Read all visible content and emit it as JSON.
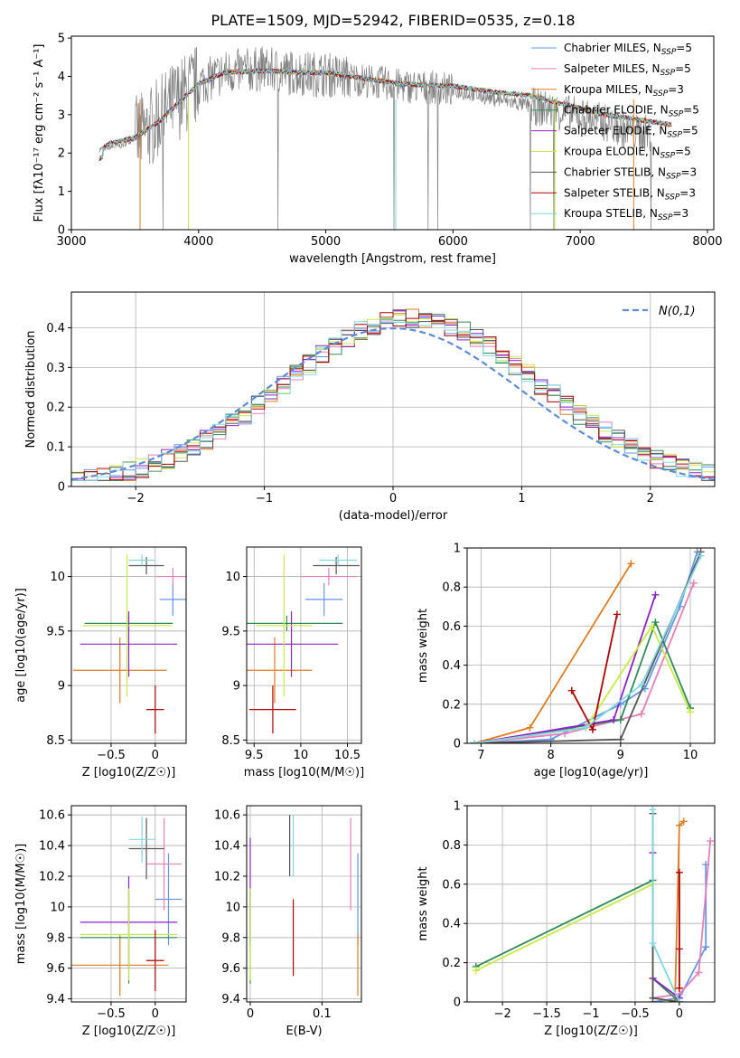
{
  "figure_title": "PLATE=1509, MJD=52942, FIBERID=0535, z=0.18",
  "colors": {
    "Chabrier MILES": "#6495ed",
    "Salpeter MILES": "#e87fb8",
    "Kroupa MILES": "#e07b20",
    "Chabrier ELODIE": "#2e8b57",
    "Salpeter ELODIE": "#8b22c8",
    "Kroupa ELODIE": "#c7ea46",
    "Chabrier STELIB": "#555555",
    "Salpeter STELIB": "#b00000",
    "Kroupa STELIB": "#80d8e0"
  },
  "chart_data": [
    {
      "id": "spectrum",
      "type": "line",
      "xlabel": "wavelength [Angstrom, rest frame]",
      "ylabel": "Flux [fλ10⁻¹⁷ erg cm⁻² s⁻¹ A⁻¹]",
      "xlim": [
        3000,
        8050
      ],
      "ylim": [
        0,
        5.05
      ],
      "xticks": [
        3000,
        4000,
        5000,
        6000,
        7000,
        8000
      ],
      "yticks": [
        0,
        1,
        2,
        3,
        4,
        5
      ],
      "legend_position": "top-right",
      "legend": [
        "Chabrier MILES, N_SSP=5",
        "Salpeter MILES, N_SSP=5",
        "Kroupa MILES, N_SSP=3",
        "Chabrier ELODIE, N_SSP=5",
        "Salpeter ELODIE, N_SSP=5",
        "Kroupa ELODIE, N_SSP=5",
        "Chabrier STELIB, N_SSP=3",
        "Salpeter STELIB, N_SSP=3",
        "Kroupa STELIB, N_SSP=3"
      ],
      "observed_x": [
        3220,
        3400,
        3600,
        3800,
        4000,
        4200,
        4500,
        4700,
        5000,
        5300,
        5600,
        5900,
        6200,
        6500,
        6800,
        7100,
        7400,
        7550
      ],
      "observed_y": [
        2.1,
        2.2,
        2.6,
        3.3,
        3.8,
        4.1,
        4.2,
        4.1,
        4.05,
        3.9,
        3.75,
        3.7,
        3.5,
        3.3,
        3.1,
        2.9,
        2.55,
        2.5
      ],
      "model_x": [
        3220,
        3300,
        3500,
        3700,
        3900,
        4000,
        4200,
        4500,
        4800,
        5000,
        5300,
        5600,
        6000,
        6300,
        6600,
        6900,
        7200,
        7500,
        7700
      ],
      "model_y": [
        2.05,
        2.25,
        2.4,
        2.85,
        3.5,
        3.8,
        4.1,
        4.15,
        4.1,
        4.1,
        3.95,
        3.8,
        3.75,
        3.6,
        3.5,
        3.25,
        3.0,
        2.85,
        2.75
      ]
    },
    {
      "id": "residual_histogram",
      "type": "line",
      "xlabel": "(data-model)/error",
      "ylabel": "Normed distribution",
      "xlim": [
        -2.5,
        2.5
      ],
      "ylim": [
        0,
        0.49
      ],
      "xticks": [
        -2,
        -1,
        0,
        1,
        2
      ],
      "yticks": [
        0.0,
        0.1,
        0.2,
        0.3,
        0.4
      ],
      "legend_position": "top-right",
      "legend": [
        "N(0,1)"
      ],
      "gaussian": {
        "mean": 0,
        "sigma": 1
      },
      "bin_width": 0.1,
      "grid": true
    },
    {
      "id": "age_vs_Z",
      "type": "scatter",
      "xlabel": "Z [log10(Z/Z☉)]",
      "ylabel": "age  [log10(age/yr)]",
      "xlim": [
        -0.95,
        0.35
      ],
      "ylim": [
        8.47,
        10.27
      ],
      "xticks": [
        -0.5,
        0.0
      ],
      "yticks": [
        8.5,
        9.0,
        9.5,
        10.0
      ],
      "points": [
        {
          "model": "Chabrier MILES",
          "x": 0.2,
          "xerr": 0.15,
          "y": 9.79,
          "yerr": 0.15
        },
        {
          "model": "Salpeter MILES",
          "x": 0.2,
          "xerr": 0.18,
          "y": 10.0,
          "yerr": 0.08
        },
        {
          "model": "Kroupa MILES",
          "x": -0.4,
          "xerr": 0.53,
          "y": 9.14,
          "yerr": 0.3
        },
        {
          "model": "Chabrier ELODIE",
          "x": -0.3,
          "xerr": 0.5,
          "y": 9.57,
          "yerr": 0.07
        },
        {
          "model": "Salpeter ELODIE",
          "x": -0.3,
          "xerr": 0.55,
          "y": 9.38,
          "yerr": 0.3
        },
        {
          "model": "Kroupa ELODIE",
          "x": -0.32,
          "xerr": 0.5,
          "y": 9.55,
          "yerr": 0.65
        },
        {
          "model": "Chabrier STELIB",
          "x": -0.1,
          "xerr": 0.2,
          "y": 10.1,
          "yerr": 0.08
        },
        {
          "model": "Salpeter STELIB",
          "x": 0.0,
          "xerr": 0.1,
          "y": 8.78,
          "yerr": 0.22
        },
        {
          "model": "Kroupa STELIB",
          "x": -0.15,
          "xerr": 0.15,
          "y": 10.15,
          "yerr": 0.05
        }
      ]
    },
    {
      "id": "age_vs_mass",
      "type": "scatter",
      "xlabel": "mass [log10(M/M☉)]",
      "ylabel": "",
      "xlim": [
        9.42,
        10.65
      ],
      "ylim": [
        8.47,
        10.27
      ],
      "xticks": [
        9.5,
        10.0,
        10.5
      ],
      "yticks": [
        8.5,
        9.0,
        9.5,
        10.0
      ],
      "points": [
        {
          "model": "Chabrier MILES",
          "x": 10.25,
          "xerr": 0.2,
          "y": 9.79,
          "yerr": 0.15
        },
        {
          "model": "Salpeter MILES",
          "x": 10.3,
          "xerr": 0.3,
          "y": 10.0,
          "yerr": 0.08
        },
        {
          "model": "Kroupa MILES",
          "x": 9.72,
          "xerr": 0.4,
          "y": 9.14,
          "yerr": 0.3
        },
        {
          "model": "Chabrier ELODIE",
          "x": 9.85,
          "xerr": 0.6,
          "y": 9.57,
          "yerr": 0.07
        },
        {
          "model": "Salpeter ELODIE",
          "x": 9.9,
          "xerr": 0.5,
          "y": 9.38,
          "yerr": 0.3
        },
        {
          "model": "Kroupa ELODIE",
          "x": 9.82,
          "xerr": 0.3,
          "y": 9.55,
          "yerr": 0.65
        },
        {
          "model": "Chabrier STELIB",
          "x": 10.38,
          "xerr": 0.25,
          "y": 10.1,
          "yerr": 0.08
        },
        {
          "model": "Salpeter STELIB",
          "x": 9.7,
          "xerr": 0.25,
          "y": 8.78,
          "yerr": 0.22
        },
        {
          "model": "Kroupa STELIB",
          "x": 10.4,
          "xerr": 0.2,
          "y": 10.15,
          "yerr": 0.05
        }
      ]
    },
    {
      "id": "massweight_vs_age",
      "type": "line",
      "xlabel": "age  [log10(age/yr)]",
      "ylabel": "mass weight",
      "xlim": [
        6.8,
        10.35
      ],
      "ylim": [
        0,
        1.0
      ],
      "xticks": [
        7,
        8,
        9,
        10
      ],
      "yticks": [
        0.0,
        0.2,
        0.4,
        0.6,
        0.8,
        1.0
      ],
      "series": [
        {
          "model": "Chabrier MILES",
          "x": [
            6.9,
            8.0,
            9.0,
            9.35,
            9.85,
            10.1
          ],
          "y": [
            0.0,
            0.02,
            0.2,
            0.28,
            0.7,
            0.98
          ]
        },
        {
          "model": "Salpeter MILES",
          "x": [
            6.9,
            8.2,
            9.3,
            10.05
          ],
          "y": [
            0.0,
            0.05,
            0.15,
            0.82
          ]
        },
        {
          "model": "Kroupa MILES",
          "x": [
            6.9,
            7.7,
            9.15
          ],
          "y": [
            0.0,
            0.08,
            0.92
          ]
        },
        {
          "model": "Chabrier ELODIE",
          "x": [
            6.9,
            9.0,
            9.5,
            10.0
          ],
          "y": [
            0.0,
            0.12,
            0.62,
            0.18
          ]
        },
        {
          "model": "Salpeter ELODIE",
          "x": [
            6.9,
            8.9,
            9.5
          ],
          "y": [
            0.0,
            0.12,
            0.76
          ]
        },
        {
          "model": "Kroupa ELODIE",
          "x": [
            6.9,
            8.5,
            9.45,
            10.0
          ],
          "y": [
            0.0,
            0.08,
            0.6,
            0.16
          ]
        },
        {
          "model": "Chabrier STELIB",
          "x": [
            6.9,
            9.0,
            10.15
          ],
          "y": [
            0.0,
            0.02,
            0.98
          ]
        },
        {
          "model": "Salpeter STELIB",
          "x": [
            8.3,
            8.6,
            8.95
          ],
          "y": [
            0.27,
            0.07,
            0.66
          ]
        },
        {
          "model": "Kroupa STELIB",
          "x": [
            6.9,
            8.5,
            9.3,
            10.15
          ],
          "y": [
            0.0,
            0.08,
            0.3,
            0.96
          ]
        }
      ]
    },
    {
      "id": "mass_vs_Z",
      "type": "scatter",
      "xlabel": "Z [log10(Z/Z☉)]",
      "ylabel": "mass [log10(M/M☉)]",
      "xlim": [
        -0.95,
        0.35
      ],
      "ylim": [
        9.38,
        10.66
      ],
      "xticks": [
        -0.5,
        0.0
      ],
      "yticks": [
        9.4,
        9.6,
        9.8,
        10.0,
        10.2,
        10.4,
        10.6
      ],
      "points": [
        {
          "model": "Chabrier MILES",
          "x": 0.15,
          "xerr": 0.15,
          "y": 10.05,
          "yerr": 0.3
        },
        {
          "model": "Salpeter MILES",
          "x": 0.1,
          "xerr": 0.2,
          "y": 10.28,
          "yerr": 0.3
        },
        {
          "model": "Kroupa MILES",
          "x": -0.4,
          "xerr": 0.55,
          "y": 9.62,
          "yerr": 0.2
        },
        {
          "model": "Chabrier ELODIE",
          "x": -0.3,
          "xerr": 0.55,
          "y": 9.8,
          "yerr": 0.3
        },
        {
          "model": "Salpeter ELODIE",
          "x": -0.3,
          "xerr": 0.55,
          "y": 9.9,
          "yerr": 0.3
        },
        {
          "model": "Kroupa ELODIE",
          "x": -0.3,
          "xerr": 0.55,
          "y": 9.82,
          "yerr": 0.3
        },
        {
          "model": "Chabrier STELIB",
          "x": -0.1,
          "xerr": 0.2,
          "y": 10.38,
          "yerr": 0.2
        },
        {
          "model": "Salpeter STELIB",
          "x": 0.0,
          "xerr": 0.1,
          "y": 9.65,
          "yerr": 0.2
        },
        {
          "model": "Kroupa STELIB",
          "x": -0.15,
          "xerr": 0.15,
          "y": 10.44,
          "yerr": 0.15
        }
      ]
    },
    {
      "id": "mass_vs_EBV",
      "type": "scatter",
      "xlabel": "E(B-V)",
      "ylabel": "",
      "xlim": [
        -0.005,
        0.155
      ],
      "ylim": [
        9.38,
        10.66
      ],
      "xticks": [
        0.0,
        0.1
      ],
      "yticks": [
        9.4,
        9.6,
        9.8,
        10.0,
        10.2,
        10.4,
        10.6
      ],
      "points": [
        {
          "model": "Chabrier MILES",
          "x": 0.15,
          "y": 10.05,
          "yerr": 0.3
        },
        {
          "model": "Salpeter MILES",
          "x": 0.14,
          "y": 10.28,
          "yerr": 0.3
        },
        {
          "model": "Kroupa MILES",
          "x": 0.15,
          "y": 9.62,
          "yerr": 0.2
        },
        {
          "model": "Chabrier ELODIE",
          "x": 0.0,
          "y": 9.8,
          "yerr": 0.3
        },
        {
          "model": "Salpeter ELODIE",
          "x": 0.0,
          "y": 10.1,
          "yerr": 0.35
        },
        {
          "model": "Kroupa ELODIE",
          "x": 0.0,
          "y": 9.82,
          "yerr": 0.3
        },
        {
          "model": "Chabrier STELIB",
          "x": 0.055,
          "y": 10.4,
          "yerr": 0.2
        },
        {
          "model": "Salpeter STELIB",
          "x": 0.06,
          "y": 9.8,
          "yerr": 0.25
        },
        {
          "model": "Kroupa STELIB",
          "x": 0.06,
          "y": 10.4,
          "yerr": 0.2
        }
      ]
    },
    {
      "id": "massweight_vs_Z",
      "type": "line",
      "xlabel": "Z [log10(Z/Z☉)]",
      "ylabel": "mass weight",
      "xlim": [
        -2.4,
        0.4
      ],
      "ylim": [
        0,
        1.0
      ],
      "xticks": [
        -2.0,
        -1.5,
        -1.0,
        -0.5,
        0.0
      ],
      "yticks": [
        0.0,
        0.2,
        0.4,
        0.6,
        0.8,
        1.0
      ],
      "series": [
        {
          "model": "Chabrier MILES",
          "x": [
            -0.3,
            0.0,
            0.3,
            0.3
          ],
          "y": [
            0.0,
            0.02,
            0.28,
            0.7
          ]
        },
        {
          "model": "Salpeter MILES",
          "x": [
            -0.3,
            0.0,
            0.22,
            0.35
          ],
          "y": [
            0.02,
            0.04,
            0.15,
            0.82
          ]
        },
        {
          "model": "Kroupa MILES",
          "x": [
            -0.05,
            0.0,
            0.05
          ],
          "y": [
            0.0,
            0.9,
            0.92
          ]
        },
        {
          "model": "Chabrier ELODIE",
          "x": [
            -2.3,
            -0.3,
            -0.3,
            0.0
          ],
          "y": [
            0.18,
            0.62,
            0.12,
            0.0
          ]
        },
        {
          "model": "Salpeter ELODIE",
          "x": [
            -0.3,
            -0.3,
            0.0
          ],
          "y": [
            0.76,
            0.12,
            0.02
          ]
        },
        {
          "model": "Kroupa ELODIE",
          "x": [
            -2.3,
            -0.3,
            -0.3,
            0.0
          ],
          "y": [
            0.16,
            0.6,
            0.02,
            0.0
          ]
        },
        {
          "model": "Chabrier STELIB",
          "x": [
            -0.3,
            -0.3,
            0.0
          ],
          "y": [
            0.96,
            0.02,
            0.0
          ]
        },
        {
          "model": "Salpeter STELIB",
          "x": [
            0.0,
            0.0,
            0.0
          ],
          "y": [
            0.66,
            0.27,
            0.07
          ]
        },
        {
          "model": "Kroupa STELIB",
          "x": [
            -0.3,
            -0.3,
            0.0
          ],
          "y": [
            0.98,
            0.3,
            0.0
          ]
        }
      ]
    }
  ]
}
